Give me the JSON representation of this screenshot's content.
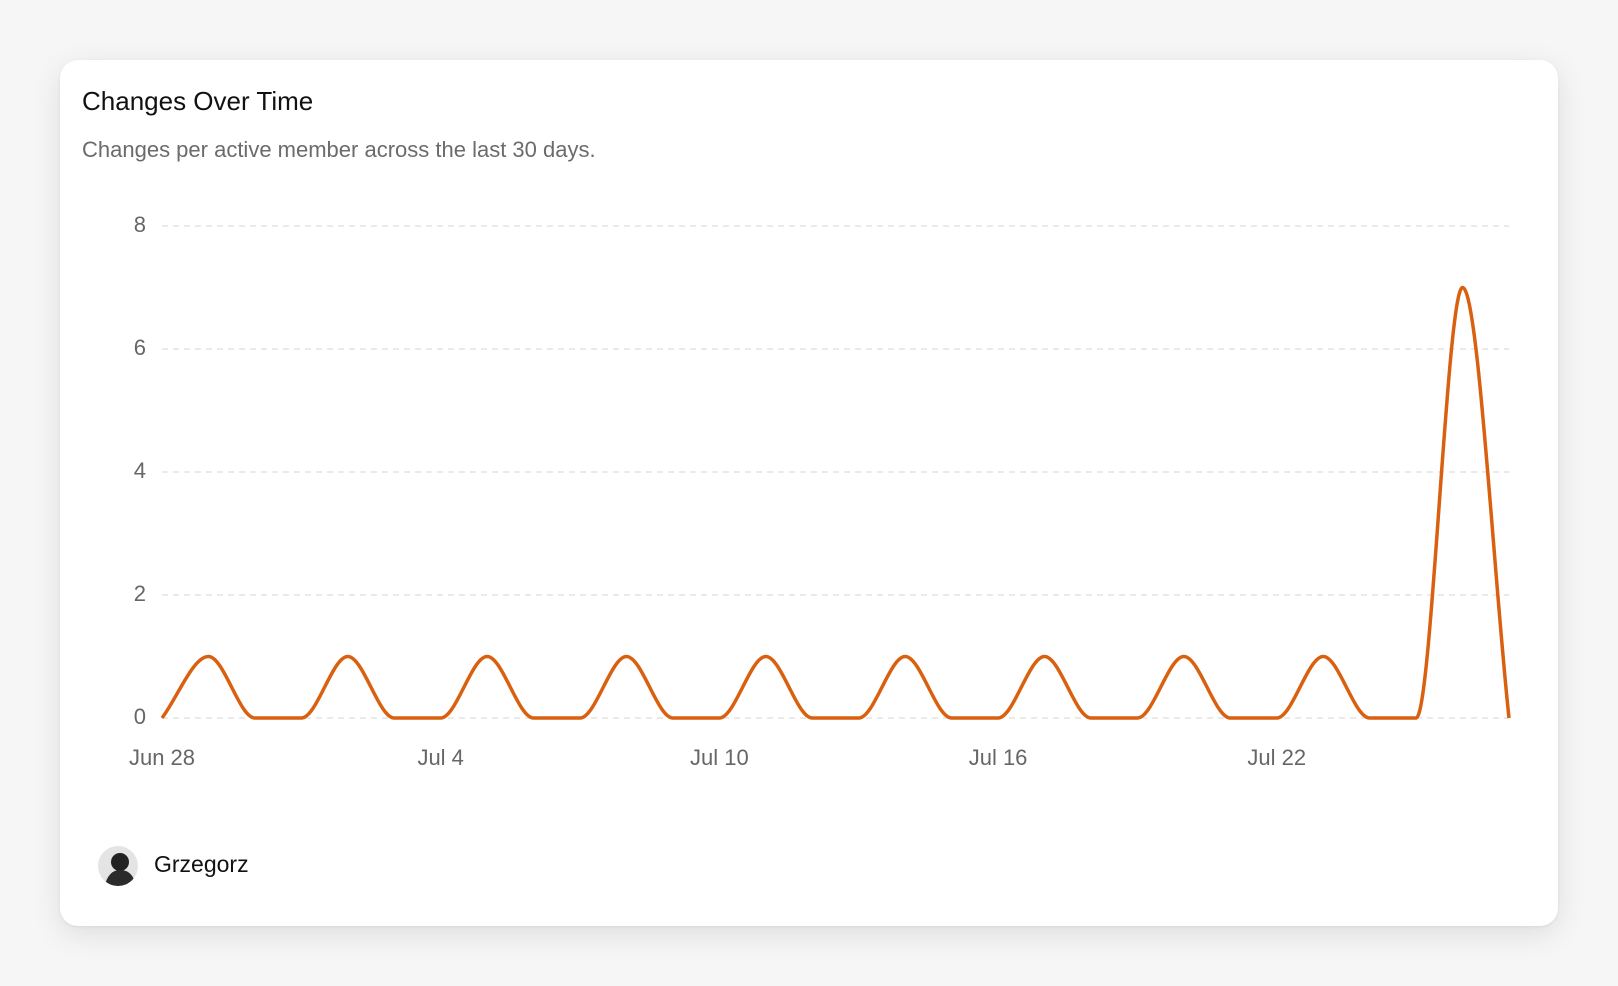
{
  "chart_data": {
    "type": "line",
    "title": "Changes Over Time",
    "subtitle": "Changes per active member across the last 30 days.",
    "categories": [
      "Jun 28",
      null,
      null,
      null,
      null,
      null,
      "Jul 4",
      null,
      null,
      null,
      null,
      null,
      "Jul 10",
      null,
      null,
      null,
      null,
      null,
      "Jul 16",
      null,
      null,
      null,
      null,
      null,
      "Jul 22",
      null,
      null,
      null,
      null,
      null
    ],
    "series": [
      {
        "name": "Grzegorz",
        "color": "#d9600f",
        "values": [
          0,
          1,
          0,
          0,
          1,
          0,
          0,
          1,
          0,
          0,
          1,
          0,
          0,
          1,
          0,
          0,
          1,
          0,
          0,
          1,
          0,
          0,
          1,
          0,
          0,
          1,
          0,
          0,
          7,
          0
        ]
      }
    ],
    "ylim": [
      0,
      8
    ],
    "yticks": [
      0,
      2,
      4,
      6,
      8
    ],
    "grid": true,
    "smooth": true
  }
}
